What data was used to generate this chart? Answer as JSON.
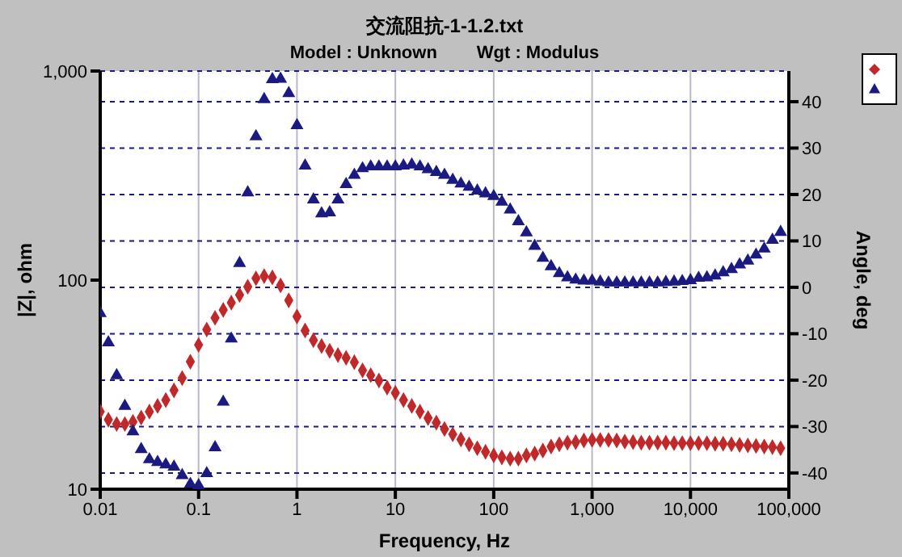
{
  "chart_data": {
    "type": "scatter",
    "title": "交流阻抗-1-1.2.txt",
    "subtitle": "Model : Unknown        Wgt : Modulus",
    "xlabel": "Frequency, Hz",
    "ylabel": "|Z|, ohm",
    "y2label": "Angle, deg",
    "x": [
      0.01,
      0.0121,
      0.0147,
      0.0178,
      0.0215,
      0.0261,
      0.0316,
      0.0383,
      0.0464,
      0.0562,
      0.0681,
      0.0825,
      0.1,
      0.121,
      0.147,
      0.178,
      0.215,
      0.261,
      0.316,
      0.383,
      0.464,
      0.562,
      0.681,
      0.825,
      1,
      1.21,
      1.47,
      1.78,
      2.15,
      2.61,
      3.16,
      3.83,
      4.64,
      5.62,
      6.81,
      8.25,
      10,
      12.1,
      14.7,
      17.8,
      21.5,
      26.1,
      31.6,
      38.3,
      46.4,
      56.2,
      68.1,
      82.5,
      100,
      121,
      147,
      178,
      215,
      261,
      316,
      383,
      464,
      562,
      681,
      825,
      1000,
      1210,
      1470,
      1780,
      2150,
      2610,
      3160,
      3830,
      4640,
      5620,
      6810,
      8250,
      10000,
      12100,
      14700,
      17800,
      21500,
      26100,
      31600,
      38300,
      46400,
      56200,
      68100,
      82500
    ],
    "series": [
      {
        "color": "#c0282a",
        "marker": "diamond",
        "values": [
          23.5,
          21.5,
          20.5,
          20.5,
          21,
          22,
          23.5,
          25,
          26.7,
          29.7,
          34,
          40.7,
          49,
          58,
          66,
          72,
          78,
          85,
          93,
          102,
          104.5,
          103,
          94.4,
          80,
          67,
          57.4,
          51.6,
          48.4,
          45.9,
          43.8,
          42.5,
          40.5,
          37,
          35.1,
          33.1,
          30.6,
          28.9,
          26.7,
          25,
          23.5,
          21.9,
          20.8,
          19.4,
          18.3,
          17.3,
          16.4,
          15.7,
          15.1,
          14.5,
          14.2,
          14,
          14,
          14.5,
          14.8,
          15.3,
          16,
          16.4,
          16.7,
          16.8,
          17.1,
          17.2,
          17.2,
          17.2,
          17.1,
          16.9,
          16.8,
          16.7,
          16.7,
          16.7,
          16.7,
          16.6,
          16.6,
          16.6,
          16.6,
          16.6,
          16.5,
          16.5,
          16.4,
          16.3,
          16.2,
          16.1,
          16,
          15.9,
          15.7
        ]
      },
      {
        "color": "#1a1a80",
        "marker": "triangle",
        "axis": "y2",
        "values": [
          -5.6,
          -11.9,
          -19,
          -25.6,
          -31.1,
          -34.9,
          -37.1,
          -37.7,
          -38.2,
          -38.7,
          -40.5,
          -42.4,
          -42.7,
          -40.1,
          -34.5,
          -24.7,
          -11.1,
          5.2,
          20.4,
          32.5,
          40.5,
          44.8,
          44.9,
          41.8,
          34.9,
          26.2,
          18.9,
          15.9,
          16.1,
          18.9,
          22.2,
          24.2,
          25.6,
          26,
          26,
          26,
          26,
          26.2,
          26.4,
          26,
          25.4,
          24.8,
          24.2,
          23.1,
          22.3,
          21.6,
          20.8,
          20.2,
          19.6,
          18.4,
          16.7,
          14.2,
          11.8,
          8.9,
          6.3,
          4.5,
          3,
          2.1,
          1.6,
          1.4,
          1.4,
          1.2,
          1,
          1,
          1,
          1,
          1,
          1,
          1,
          1.1,
          1.2,
          1.3,
          1.5,
          2,
          2.1,
          2.5,
          3.2,
          3.9,
          4.9,
          5.7,
          7,
          8.3,
          10.2,
          11.9
        ]
      }
    ],
    "log": "xy",
    "xlim": [
      0.01,
      100000
    ],
    "xticks": [
      0.01,
      0.1,
      1,
      10,
      100,
      {
        "value": 1000,
        "label": "1,000"
      },
      {
        "value": 10000,
        "label": "10,000"
      },
      {
        "value": 100000,
        "label": "100,000"
      }
    ],
    "ylim": [
      10,
      1000
    ],
    "yticks": [
      10,
      100,
      {
        "value": 1000,
        "label": "1,000"
      }
    ],
    "y2lim": [
      -43.5,
      46.6
    ],
    "y2ticks": [
      -40,
      -30,
      -20,
      -10,
      0,
      10,
      20,
      30,
      40
    ],
    "grid": true
  }
}
